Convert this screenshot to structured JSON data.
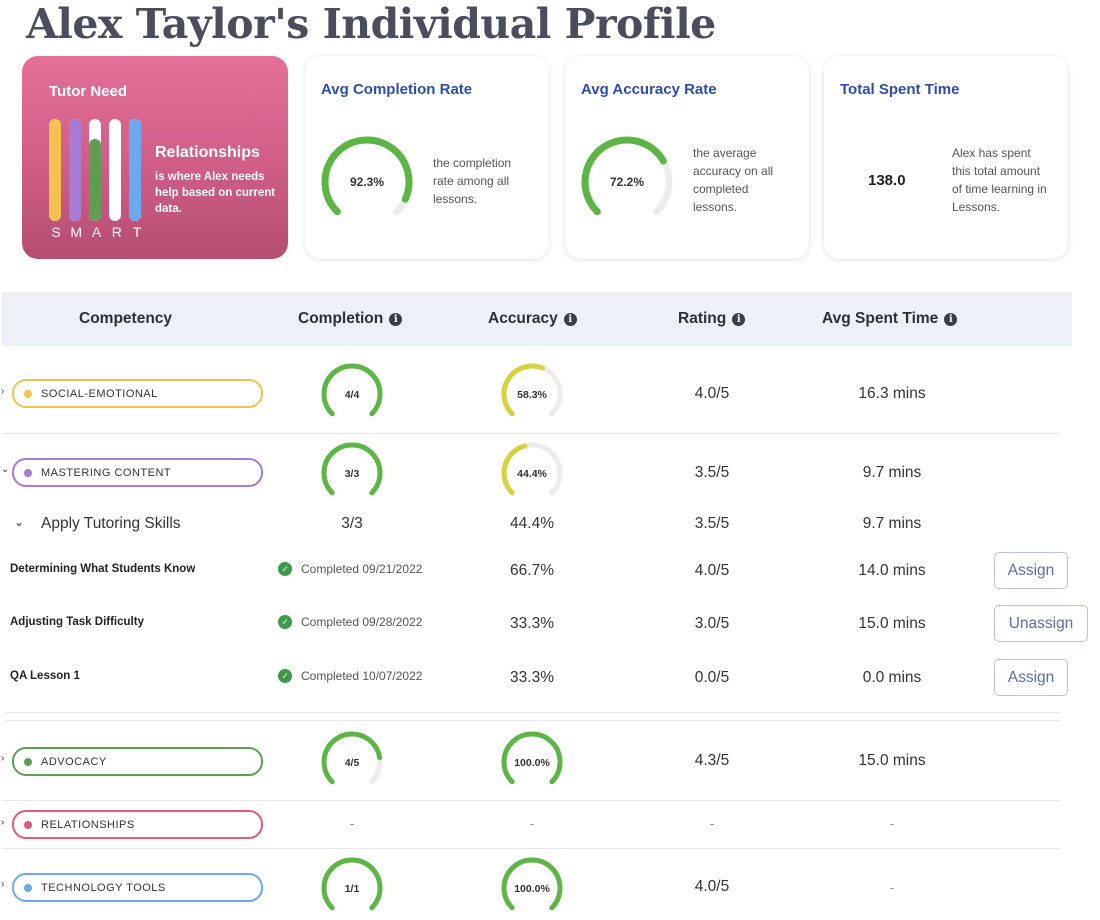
{
  "page": {
    "title": "Alex Taylor's Individual Profile"
  },
  "tutor_need": {
    "title": "Tutor Need",
    "need": "Relationships",
    "description": "is where Alex needs help based on current data.",
    "letters": [
      "S",
      "M",
      "A",
      "R",
      "T"
    ],
    "bars": [
      {
        "letter": "S",
        "fill": 1.0,
        "color": "#f2c14e"
      },
      {
        "letter": "M",
        "fill": 1.0,
        "color": "#a77ad6"
      },
      {
        "letter": "A",
        "fill": 0.8,
        "color": "#5e9e52"
      },
      {
        "letter": "R",
        "fill": 0.0,
        "color": "#ffffff"
      },
      {
        "letter": "T",
        "fill": 1.0,
        "color": "#6aa9ee"
      }
    ]
  },
  "stats": {
    "completion": {
      "title": "Avg Completion Rate",
      "value": "92.3%",
      "fraction": 0.923,
      "description": "the completion rate among all lessons."
    },
    "accuracy": {
      "title": "Avg Accuracy Rate",
      "value": "72.2%",
      "fraction": 0.722,
      "description": "the average accuracy on all completed lessons."
    },
    "time": {
      "title": "Total Spent Time",
      "value": "138.0",
      "description": "Alex has spent this total amount of time learning in Lessons."
    }
  },
  "table": {
    "headers": {
      "competency": "Competency",
      "completion": "Completion",
      "accuracy": "Accuracy",
      "rating": "Rating",
      "time": "Avg Spent Time"
    },
    "info_glyph": "i",
    "rows": [
      {
        "name": "SOCIAL-EMOTIONAL",
        "color": "#f2c14e",
        "chevron": "›",
        "completion": "4/4",
        "completion_fraction": 1.0,
        "accuracy": "58.3%",
        "accuracy_fraction": 0.583,
        "rating": "4.0/5",
        "time": "16.3 mins"
      },
      {
        "name": "MASTERING CONTENT",
        "color": "#a77ad6",
        "chevron": "⌄",
        "completion": "3/3",
        "completion_fraction": 1.0,
        "accuracy": "44.4%",
        "accuracy_fraction": 0.444,
        "rating": "3.5/5",
        "time": "9.7 mins"
      },
      {
        "name": "ADVOCACY",
        "color": "#5e9e52",
        "chevron": "›",
        "completion": "4/5",
        "completion_fraction": 0.8,
        "accuracy": "100.0%",
        "accuracy_fraction": 1.0,
        "rating": "4.3/5",
        "time": "15.0 mins"
      },
      {
        "name": "RELATIONSHIPS",
        "color": "#e05a7a",
        "chevron": "›",
        "completion": "-",
        "accuracy": "-",
        "rating": "-",
        "time": "-"
      },
      {
        "name": "TECHNOLOGY TOOLS",
        "color": "#6aa9ee",
        "chevron": "›",
        "completion": "1/1",
        "completion_fraction": 1.0,
        "accuracy": "100.0%",
        "accuracy_fraction": 1.0,
        "rating": "4.0/5",
        "time": "-"
      }
    ],
    "subgroup": {
      "chevron": "⌄",
      "name": "Apply Tutoring Skills",
      "completion": "3/3",
      "accuracy": "44.4%",
      "rating": "3.5/5",
      "time": "9.7 mins"
    },
    "lessons": [
      {
        "name": "Determining What Students Know",
        "status": "Completed 09/21/2022",
        "accuracy": "66.7%",
        "rating": "4.0/5",
        "time": "14.0 mins",
        "action": "Assign"
      },
      {
        "name": "Adjusting Task Difficulty",
        "status": "Completed 09/28/2022",
        "accuracy": "33.3%",
        "rating": "3.0/5",
        "time": "15.0 mins",
        "action": "Unassign"
      },
      {
        "name": "QA Lesson 1",
        "status": "Completed 10/07/2022",
        "accuracy": "33.3%",
        "rating": "0.0/5",
        "time": "0.0 mins",
        "action": "Assign"
      }
    ],
    "check_glyph": "✓"
  },
  "colors": {
    "green": "#5cb545",
    "yellow": "#d4d23e",
    "track": "#ececec"
  }
}
